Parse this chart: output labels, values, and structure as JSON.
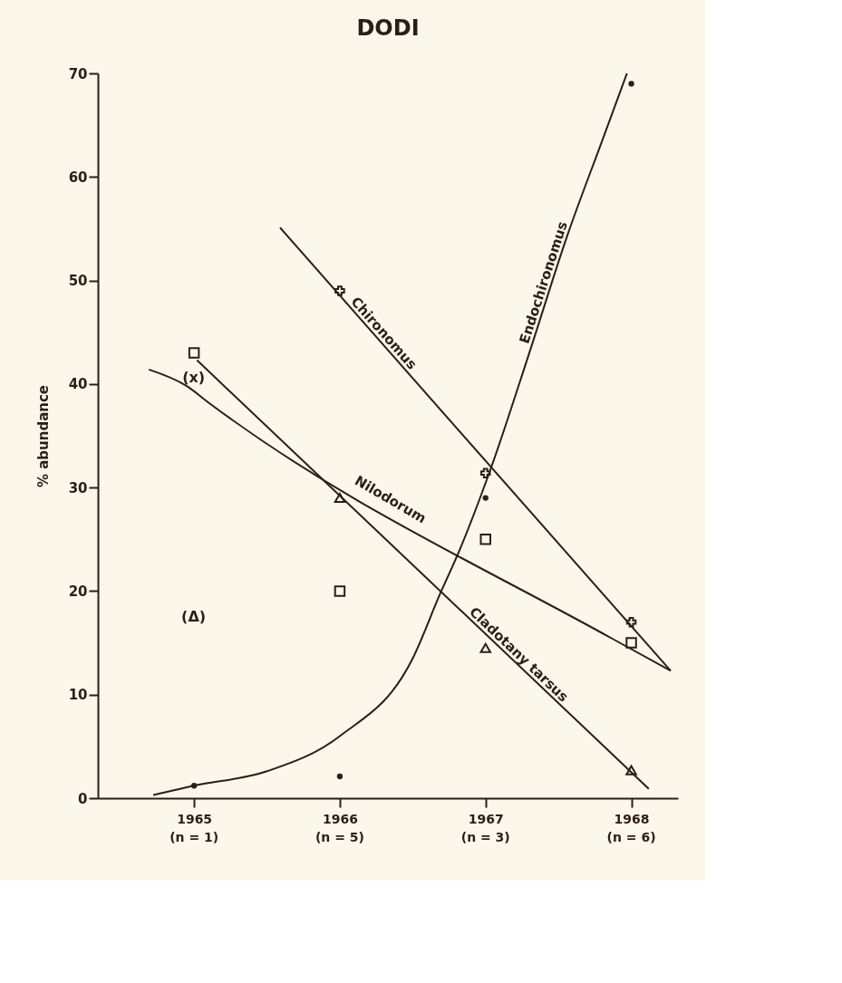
{
  "chart_data": {
    "type": "scatter",
    "title": "DODI",
    "ylabel": "% abundance",
    "xlim": [
      1964.34,
      1968.32
    ],
    "xticks": [
      1965,
      1966,
      1967,
      1968
    ],
    "ylim": [
      0,
      70
    ],
    "yticks": [
      0,
      10,
      20,
      30,
      40,
      50,
      60,
      70
    ],
    "grid": false,
    "series": [
      {
        "name": "Chironomus",
        "type": "line",
        "marker": "none",
        "color": "#2a1f17",
        "x": [
          1965.59,
          1968.27
        ],
        "values": [
          55.1,
          12.3
        ]
      },
      {
        "name": "Endochironomus",
        "type": "line",
        "marker": "none",
        "color": "#2a1f17",
        "x": [
          1964.72,
          1965,
          1965.5,
          1966,
          1966.5,
          1966.69,
          1966.82,
          1967.04,
          1967.3,
          1967.56,
          1967.8,
          1967.97
        ],
        "values": [
          0.3,
          1.2,
          2.6,
          6,
          13.5,
          19.8,
          23.9,
          32,
          43,
          54.3,
          63.5,
          70
        ]
      },
      {
        "name": "Nilodorum",
        "type": "line",
        "marker": "none",
        "color": "#2a1f17",
        "x": [
          1964.69,
          1964.95,
          1965.1,
          1967.87,
          1968.27
        ],
        "values": [
          41.4,
          39.8,
          38.2,
          15.4,
          12.3
        ]
      },
      {
        "name": "Cladotany tarsus",
        "type": "line",
        "marker": "none",
        "color": "#2a1f17",
        "x": [
          1965.02,
          1968.12
        ],
        "values": [
          42.3,
          0.9
        ]
      },
      {
        "marker": "cross",
        "color": "#2a1f17",
        "x": [
          1966,
          1967,
          1968
        ],
        "values": [
          49,
          31.4,
          17
        ]
      },
      {
        "marker": "circle",
        "color": "#2a1f17",
        "x": [
          1965,
          1966,
          1967,
          1968
        ],
        "values": [
          1.2,
          2.1,
          29,
          69
        ]
      },
      {
        "marker": "square",
        "color": "#2a1f17",
        "x": [
          1965,
          1966,
          1967,
          1968
        ],
        "values": [
          43,
          20,
          25,
          15
        ]
      },
      {
        "marker": "triangle",
        "color": "#2a1f17",
        "x": [
          1966,
          1967,
          1968
        ],
        "values": [
          29,
          14.5,
          2.7
        ]
      }
    ],
    "annotations": [
      "(x)",
      "(Δ)",
      "(n = 1)",
      "(n = 5)",
      "(n = 3)",
      "(n = 6)"
    ]
  }
}
